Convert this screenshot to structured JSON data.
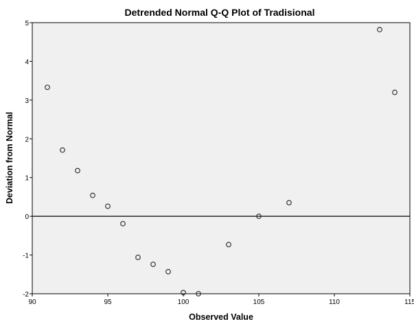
{
  "chart_data": {
    "type": "scatter",
    "title": "Detrended Normal Q-Q Plot of Tradisional",
    "xlabel": "Observed Value",
    "ylabel": "Deviation from Normal",
    "xlim": [
      90,
      115
    ],
    "ylim": [
      -2,
      5
    ],
    "x_ticks": [
      90,
      95,
      100,
      105,
      110,
      115
    ],
    "x_tick_labels": [
      "90",
      "95",
      "100",
      "105",
      "110",
      "115"
    ],
    "y_ticks": [
      -2,
      -1,
      0,
      1,
      2,
      3,
      4,
      5
    ],
    "y_tick_labels": [
      "-2",
      "-1",
      "0",
      "1",
      "2",
      "3",
      "4",
      "5"
    ],
    "reference_line": 0,
    "grid": false,
    "background_color": "#f0f0f0",
    "marker": "open-circle",
    "points": [
      {
        "x": 91,
        "y": 3.33
      },
      {
        "x": 92,
        "y": 1.71
      },
      {
        "x": 93,
        "y": 1.18
      },
      {
        "x": 94,
        "y": 0.54
      },
      {
        "x": 95,
        "y": 0.26
      },
      {
        "x": 96,
        "y": -0.19
      },
      {
        "x": 97,
        "y": -1.06
      },
      {
        "x": 98,
        "y": -1.24
      },
      {
        "x": 99,
        "y": -1.43
      },
      {
        "x": 100,
        "y": -1.97
      },
      {
        "x": 101,
        "y": -2.0
      },
      {
        "x": 103,
        "y": -0.73
      },
      {
        "x": 105,
        "y": 0.0
      },
      {
        "x": 107,
        "y": 0.35
      },
      {
        "x": 113,
        "y": 4.82
      },
      {
        "x": 114,
        "y": 3.2
      }
    ]
  }
}
